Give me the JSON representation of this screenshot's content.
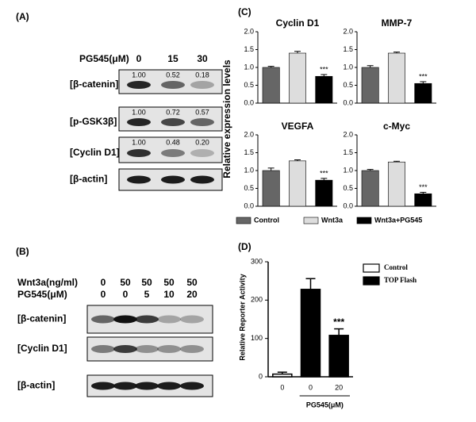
{
  "blots": [
    {
      "label": "(A)",
      "conditions": [
        {
          "name": "PG545(μM)",
          "values": [
            0,
            15,
            30
          ]
        }
      ],
      "rows": [
        {
          "name": "[β-catenin]",
          "quant": [
            "1.00",
            "0.52",
            "0.18"
          ]
        },
        {
          "name": "[p-GSK3β]",
          "quant": [
            "1.00",
            "0.72",
            "0.57"
          ]
        },
        {
          "name": "[Cyclin D1]",
          "quant": [
            "1.00",
            "0.48",
            "0.20"
          ]
        },
        {
          "name": "[β-actin]"
        }
      ]
    },
    {
      "label": "(B)",
      "conditions": [
        {
          "name": "Wnt3a(ng/ml)",
          "values": [
            0,
            50,
            50,
            50,
            50
          ]
        },
        {
          "name": "PG545(μM)",
          "values": [
            0,
            0,
            5,
            10,
            20
          ]
        }
      ],
      "rows": [
        {
          "name": "[β-catenin]"
        },
        {
          "name": "[Cyclin D1]"
        },
        {
          "name": "[β-actin]"
        }
      ]
    }
  ],
  "chart_data": [
    {
      "type": "bar",
      "panel": "(C)",
      "ylabel": "Relative expression levels",
      "ylim": [
        0,
        2
      ],
      "yticks": [
        {
          "value": 0,
          "label": "0.0"
        },
        {
          "value": 0.5,
          "label": "0.5"
        },
        {
          "value": 1,
          "label": "1.0"
        },
        {
          "value": 1.5,
          "label": "1.5"
        },
        {
          "value": 2,
          "label": "2.0"
        }
      ],
      "legend": [
        "Control",
        "Wnt3a",
        "Wnt3a+PG545"
      ],
      "colors": [
        "#666666",
        "#dddddd",
        "#000000"
      ],
      "subplots": [
        {
          "title": "Cyclin D1",
          "values": [
            1.0,
            1.4,
            0.75
          ],
          "errors": [
            0.03,
            0.05,
            0.05
          ],
          "annotation": "***"
        },
        {
          "title": "MMP-7",
          "values": [
            1.0,
            1.4,
            0.55
          ],
          "errors": [
            0.05,
            0.03,
            0.05
          ],
          "annotation": "***"
        },
        {
          "title": "VEGFA",
          "values": [
            1.0,
            1.27,
            0.73
          ],
          "errors": [
            0.07,
            0.03,
            0.05
          ],
          "annotation": "***"
        },
        {
          "title": "c-Myc",
          "values": [
            1.0,
            1.24,
            0.35
          ],
          "errors": [
            0.03,
            0.02,
            0.04
          ],
          "annotation": "***"
        }
      ]
    },
    {
      "type": "bar",
      "panel": "(D)",
      "ylabel": "Relative Reporter Activity",
      "xlabel": "PG545(μM)",
      "categories": [
        "0",
        "0",
        "20"
      ],
      "ylim": [
        0,
        300
      ],
      "yticks": [
        0,
        100,
        200,
        300
      ],
      "series": [
        {
          "name": "Control",
          "color": "#ffffff",
          "values": [
            7,
            null,
            null
          ],
          "errors": [
            5,
            null,
            null
          ]
        },
        {
          "name": "TOP Flash",
          "color": "#000000",
          "values": [
            null,
            228,
            108
          ],
          "errors": [
            null,
            28,
            17
          ]
        }
      ],
      "annotation": "***"
    }
  ]
}
